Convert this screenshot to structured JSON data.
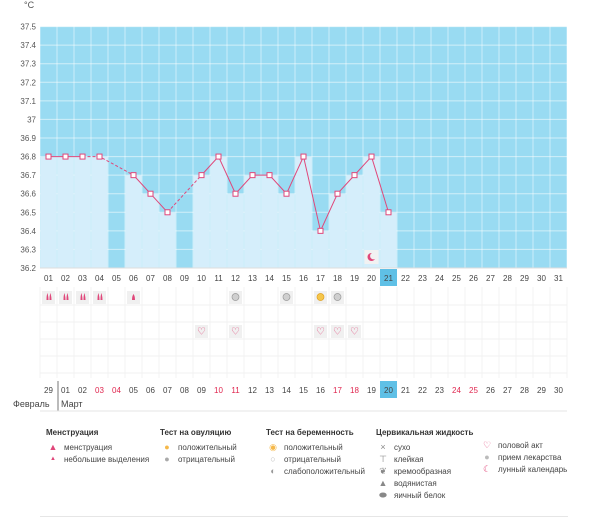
{
  "temp_axis": {
    "unit": "°C",
    "ticks": [
      "37.5",
      "37.4",
      "37.3",
      "37.2",
      "37.1",
      "37",
      "36.9",
      "36.8",
      "36.7",
      "36.6",
      "36.5",
      "36.4",
      "36.3",
      "36.2"
    ]
  },
  "chart_data": {
    "type": "bar",
    "title": "",
    "ylabel": "°C",
    "ylim": [
      36.2,
      37.6
    ],
    "categories": [
      "01",
      "02",
      "03",
      "04",
      "05",
      "06",
      "07",
      "08",
      "09",
      "10",
      "11",
      "12",
      "13",
      "14",
      "15",
      "16",
      "17",
      "18",
      "19",
      "20",
      "21",
      "22",
      "23",
      "24",
      "25",
      "26",
      "27",
      "28",
      "29",
      "30",
      "31"
    ],
    "values": [
      36.8,
      36.8,
      36.8,
      36.8,
      null,
      36.7,
      36.6,
      36.5,
      null,
      36.7,
      36.8,
      36.6,
      36.7,
      36.7,
      36.6,
      36.8,
      36.4,
      36.6,
      36.7,
      36.8,
      36.5,
      null,
      null,
      null,
      null,
      null,
      null,
      null,
      null,
      null,
      null
    ],
    "line_series": [
      {
        "style": "solid",
        "points": [
          [
            1,
            36.8
          ],
          [
            2,
            36.8
          ],
          [
            3,
            36.8
          ]
        ]
      },
      {
        "style": "dashed",
        "points": [
          [
            3,
            36.8
          ],
          [
            4,
            36.8
          ],
          [
            5,
            36.75
          ],
          [
            6,
            36.7
          ]
        ]
      },
      {
        "style": "solid",
        "points": [
          [
            6,
            36.7
          ],
          [
            7,
            36.6
          ],
          [
            8,
            36.5
          ]
        ]
      },
      {
        "style": "dashed",
        "points": [
          [
            8,
            36.5
          ],
          [
            9,
            36.6
          ],
          [
            10,
            36.7
          ]
        ]
      },
      {
        "style": "solid",
        "points": [
          [
            10,
            36.7
          ],
          [
            11,
            36.8
          ],
          [
            12,
            36.6
          ],
          [
            13,
            36.7
          ],
          [
            14,
            36.7
          ],
          [
            15,
            36.6
          ],
          [
            16,
            36.8
          ],
          [
            17,
            36.4
          ],
          [
            18,
            36.6
          ],
          [
            19,
            36.7
          ],
          [
            20,
            36.8
          ],
          [
            21,
            36.5
          ]
        ]
      }
    ],
    "colors": {
      "sky": "#99dbf2",
      "bar": "#d5eefb",
      "line": "#e0477a",
      "highlight": "#5fc0e6"
    }
  },
  "cycle_days": [
    "01",
    "02",
    "03",
    "04",
    "05",
    "06",
    "07",
    "08",
    "09",
    "10",
    "11",
    "12",
    "13",
    "14",
    "15",
    "16",
    "17",
    "18",
    "19",
    "20",
    "21",
    "22",
    "23",
    "24",
    "25",
    "26",
    "27",
    "28",
    "29",
    "30",
    "31"
  ],
  "today_index": 21,
  "calendar_days": [
    {
      "d": "29",
      "red": false
    },
    {
      "d": "01",
      "red": false
    },
    {
      "d": "02",
      "red": false
    },
    {
      "d": "03",
      "red": true
    },
    {
      "d": "04",
      "red": true
    },
    {
      "d": "05",
      "red": false
    },
    {
      "d": "06",
      "red": false
    },
    {
      "d": "07",
      "red": false
    },
    {
      "d": "08",
      "red": false
    },
    {
      "d": "09",
      "red": false
    },
    {
      "d": "10",
      "red": true
    },
    {
      "d": "11",
      "red": true
    },
    {
      "d": "12",
      "red": false
    },
    {
      "d": "13",
      "red": false
    },
    {
      "d": "14",
      "red": false
    },
    {
      "d": "15",
      "red": false
    },
    {
      "d": "16",
      "red": false
    },
    {
      "d": "17",
      "red": true
    },
    {
      "d": "18",
      "red": true
    },
    {
      "d": "19",
      "red": false
    },
    {
      "d": "20",
      "red": false
    },
    {
      "d": "21",
      "red": false
    },
    {
      "d": "22",
      "red": false
    },
    {
      "d": "23",
      "red": false
    },
    {
      "d": "24",
      "red": true
    },
    {
      "d": "25",
      "red": true
    },
    {
      "d": "26",
      "red": false
    },
    {
      "d": "27",
      "red": false
    },
    {
      "d": "28",
      "red": false
    },
    {
      "d": "29",
      "red": false
    },
    {
      "d": "30",
      "red": false
    }
  ],
  "months": {
    "prev": "Февраль",
    "current": "Март"
  },
  "markers": {
    "menstruation_heavy": [
      1,
      2,
      3,
      4
    ],
    "menstruation_light": [
      6
    ],
    "ovulation_negative": [
      12,
      15,
      18
    ],
    "ovulation_positive": [
      17
    ],
    "intercourse": [
      10,
      12,
      17,
      18,
      19
    ],
    "lunar": [
      20
    ]
  },
  "legend": {
    "menstruation": {
      "title": "Менструация",
      "items": [
        "менструация",
        "небольшие выделения"
      ]
    },
    "ovulation_test": {
      "title": "Тест на овуляцию",
      "items": [
        "положительный",
        "отрицательный"
      ]
    },
    "pregnancy_test": {
      "title": "Тест на беременность",
      "items": [
        "положительный",
        "отрицательный",
        "слабоположительный"
      ]
    },
    "cervical": {
      "title": "Цервикальная жидкость",
      "items": [
        "сухо",
        "клейкая",
        "кремообразная",
        "водянистая",
        "яичный белок"
      ]
    },
    "other": {
      "items": [
        "половой акт",
        "прием лекарства",
        "лунный календарь"
      ]
    }
  }
}
